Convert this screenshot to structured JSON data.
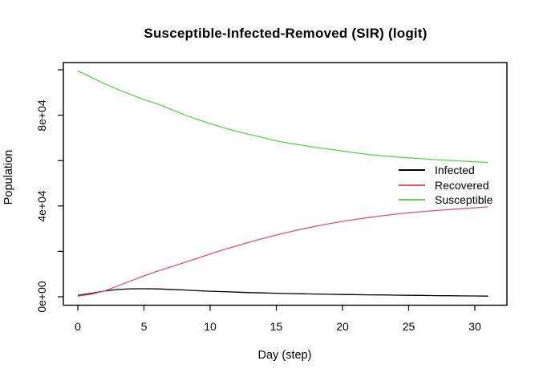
{
  "title": "Susceptible-Infected-Removed (SIR) (logit)",
  "axes": {
    "x": {
      "label": "Day (step)",
      "ticks": [
        "0",
        "5",
        "10",
        "15",
        "20",
        "25",
        "30"
      ]
    },
    "y": {
      "label": "Population",
      "ticks": [
        "0e+00",
        "4e+04",
        "8e+04"
      ]
    }
  },
  "legend": {
    "items": [
      {
        "label": "Infected",
        "color": "#000000"
      },
      {
        "label": "Recovered",
        "color": "#DF536B"
      },
      {
        "label": "Susceptible",
        "color": "#61D04F"
      }
    ]
  },
  "chart_data": {
    "type": "line",
    "title": "Susceptible-Infected-Removed (SIR) (logit)",
    "xlabel": "Day (step)",
    "ylabel": "Population",
    "xlim": [
      0,
      31
    ],
    "ylim": [
      0,
      100000
    ],
    "x_tick_values": [
      0,
      5,
      10,
      15,
      20,
      25,
      30
    ],
    "y_tick_values": [
      0,
      20000,
      40000,
      60000,
      80000,
      100000
    ],
    "y_labeled_ticks": [
      "0e+00",
      "4e+04",
      "8e+04"
    ],
    "grid": false,
    "legend_position": "right-middle",
    "x": [
      0,
      1,
      2,
      3,
      4,
      5,
      6,
      7,
      8,
      9,
      10,
      11,
      12,
      13,
      14,
      15,
      16,
      17,
      18,
      19,
      20,
      21,
      22,
      23,
      24,
      25,
      26,
      27,
      28,
      29,
      30,
      31
    ],
    "series": [
      {
        "name": "Infected",
        "color": "#000000",
        "values": [
          600,
          1500,
          2500,
          3200,
          3500,
          3550,
          3450,
          3250,
          3000,
          2700,
          2450,
          2250,
          2050,
          1850,
          1700,
          1550,
          1400,
          1300,
          1200,
          1100,
          1000,
          950,
          850,
          800,
          700,
          650,
          600,
          500,
          450,
          400,
          350,
          300
        ]
      },
      {
        "name": "Recovered",
        "color": "#DF536B",
        "values": [
          300,
          1100,
          2500,
          4700,
          7000,
          9200,
          11200,
          13100,
          15000,
          16900,
          18800,
          20700,
          22400,
          24100,
          25700,
          27200,
          28600,
          29900,
          31100,
          32200,
          33200,
          34100,
          34900,
          35700,
          36400,
          37000,
          37500,
          38000,
          38400,
          38800,
          39200,
          39600
        ]
      },
      {
        "name": "Susceptible",
        "color": "#61D04F",
        "values": [
          99500,
          96800,
          93900,
          91400,
          89100,
          86800,
          85000,
          82700,
          80300,
          78200,
          76300,
          74500,
          72900,
          71500,
          70100,
          68700,
          67600,
          66700,
          65800,
          65000,
          64200,
          63400,
          62700,
          62100,
          61600,
          61200,
          60800,
          60400,
          60100,
          59800,
          59500,
          59200
        ]
      }
    ]
  }
}
